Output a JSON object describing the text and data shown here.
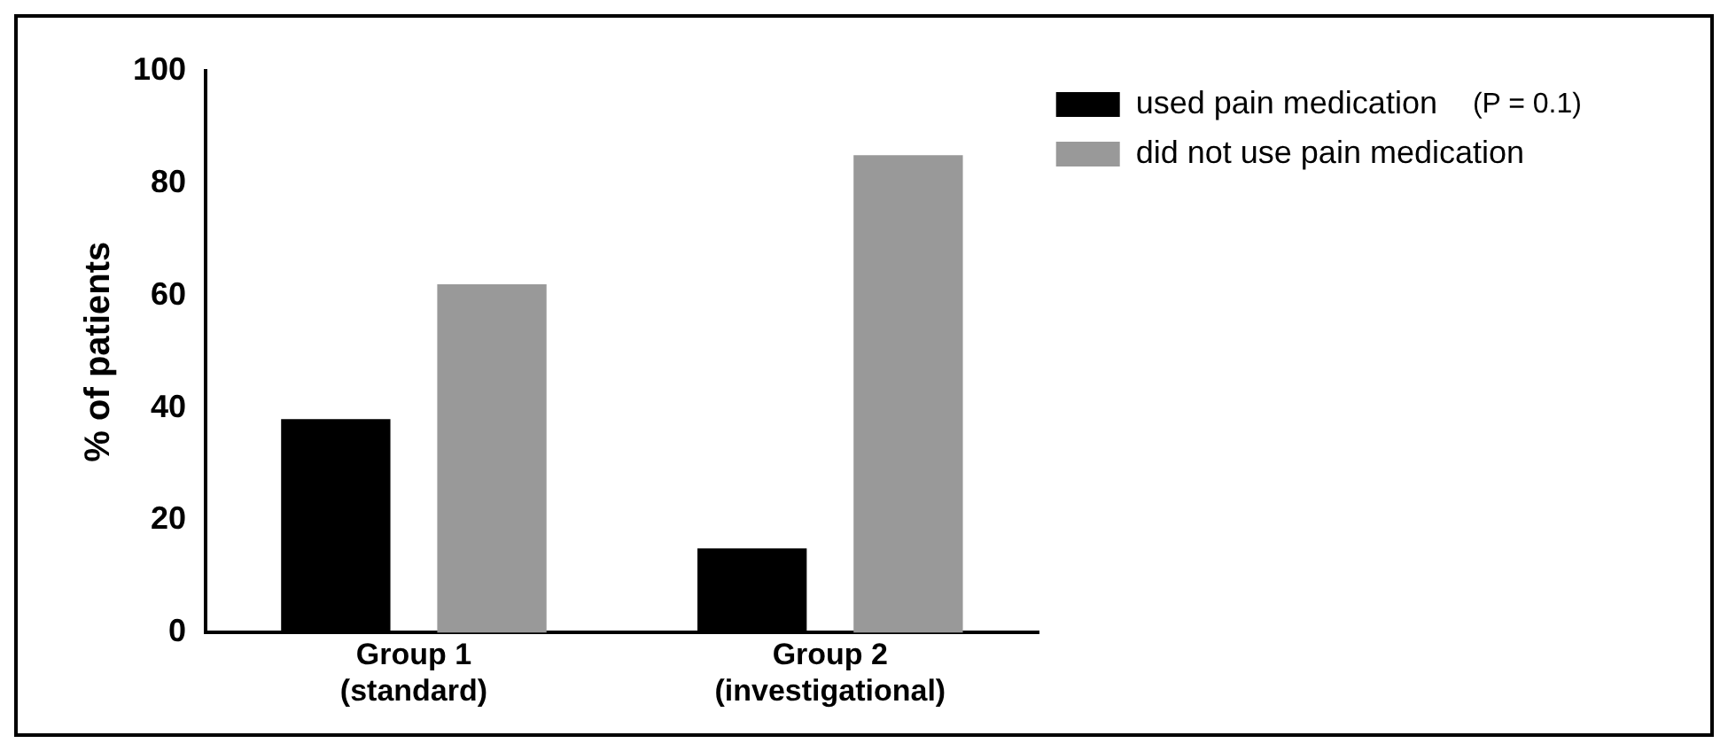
{
  "chart_data": {
    "type": "bar",
    "ylabel": "% of patients",
    "categories": [
      "Group 1\n(standard)",
      "Group 2\n(investigational)"
    ],
    "series": [
      {
        "name": "used pain medication",
        "color": "#000000",
        "values": [
          38,
          15
        ]
      },
      {
        "name": "did not use pain medication",
        "color": "#999999",
        "values": [
          62,
          85
        ]
      }
    ],
    "ylim": [
      0,
      100
    ],
    "yticks": [
      0,
      20,
      40,
      60,
      80,
      100
    ],
    "grid": false,
    "legend": "top right",
    "annotations": [
      "(P = 0.1)"
    ]
  }
}
